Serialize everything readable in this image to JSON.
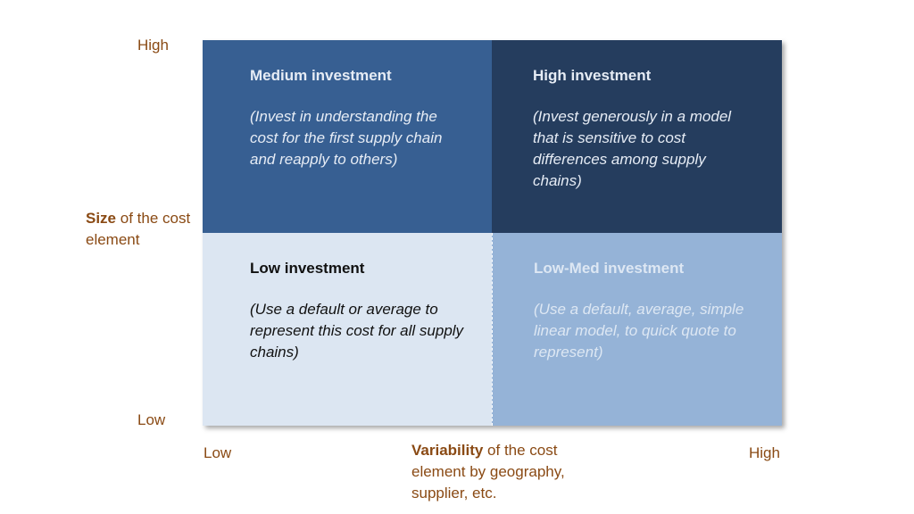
{
  "y_axis": {
    "high": "High",
    "low": "Low",
    "title_bold": "Size",
    "title_rest": " of the cost element"
  },
  "x_axis": {
    "low": "Low",
    "high": "High",
    "title_bold": "Variability",
    "title_rest": " of the cost element by geography, supplier, etc."
  },
  "quadrants": {
    "top_left": {
      "title": "Medium investment",
      "desc": "(Invest in understanding the cost for the first supply chain and reapply to others)"
    },
    "top_right": {
      "title": "High investment",
      "desc": "(Invest generously in a model that is sensitive to cost differences among supply chains)"
    },
    "bottom_left": {
      "title": "Low investment",
      "desc": "(Use a default or average to represent this cost for all supply chains)"
    },
    "bottom_right": {
      "title": "Low-Med investment",
      "desc": "(Use a default, average, simple linear model, to quick quote to represent)"
    }
  },
  "colors": {
    "top_left": "#375f92",
    "top_right": "#253d5e",
    "bottom_left": "#dce6f2",
    "bottom_right": "#95b3d7",
    "axis_text": "#8a4a14"
  }
}
